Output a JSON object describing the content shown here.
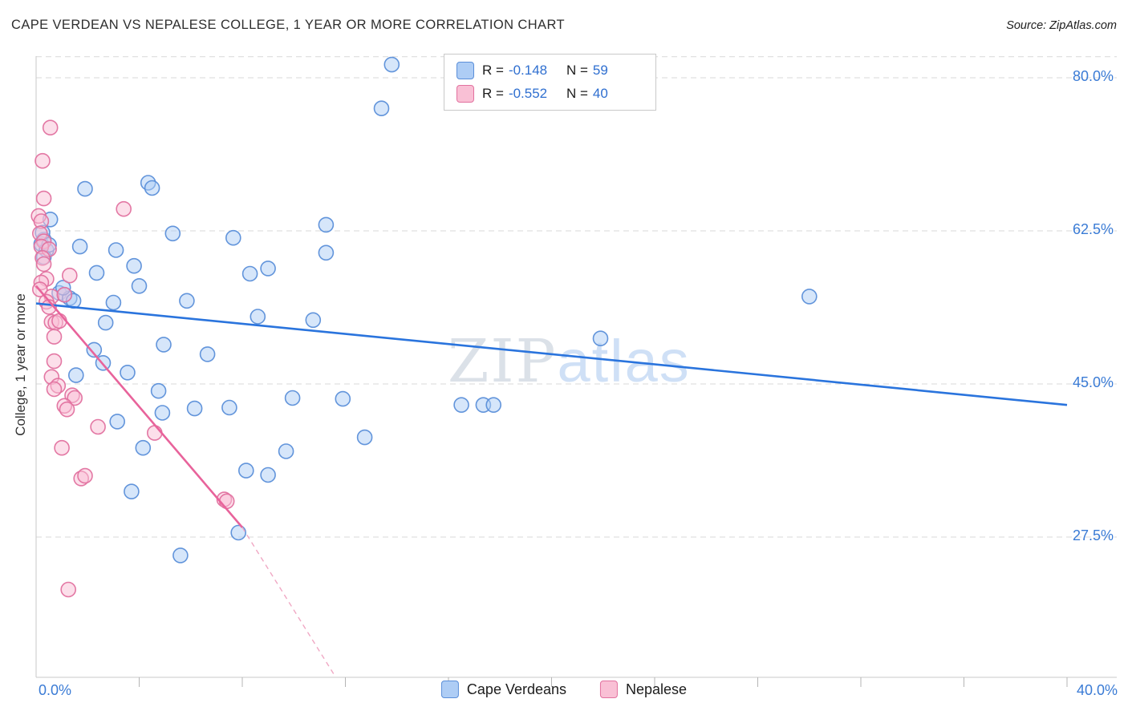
{
  "header": {
    "title": "CAPE VERDEAN VS NEPALESE COLLEGE, 1 YEAR OR MORE CORRELATION CHART",
    "source": "Source: ZipAtlas.com"
  },
  "watermark": {
    "part1": "ZIP",
    "part2": "atlas"
  },
  "correlation_legend": {
    "r_label": "R =",
    "n_label": "N =",
    "entries": [
      {
        "series": "Cape Verdeans",
        "r": "-0.148",
        "n": "59"
      },
      {
        "series": "Nepalese",
        "r": "-0.552",
        "n": "40"
      }
    ]
  },
  "bottom_legend": [
    "Cape Verdeans",
    "Nepalese"
  ],
  "chart_data": {
    "type": "scatter",
    "title": "CAPE VERDEAN VS NEPALESE COLLEGE, 1 YEAR OR MORE CORRELATION CHART",
    "xlabel": "",
    "ylabel": "College, 1 year or more",
    "xlim": [
      0,
      40
    ],
    "ylim": [
      11.5,
      82.5
    ],
    "grid": true,
    "legend_position": "bottom",
    "x_axis_labels": [
      "0.0%",
      "40.0%"
    ],
    "x_ticks": [
      4,
      8,
      12,
      16,
      20,
      24,
      28,
      32,
      36,
      40
    ],
    "y_gridlines": [
      {
        "value": 82.4,
        "label": ""
      },
      {
        "value": 80.0,
        "label": "80.0%"
      },
      {
        "value": 62.5,
        "label": "62.5%"
      },
      {
        "value": 45.0,
        "label": "45.0%"
      },
      {
        "value": 27.5,
        "label": "27.5%"
      }
    ],
    "series": [
      {
        "name": "Cape Verdeans",
        "R": -0.148,
        "N": 59,
        "fill": "#aecdf5",
        "stroke": "#5b8fd9",
        "points": [
          [
            13.8,
            81.5
          ],
          [
            13.4,
            76.5
          ],
          [
            1.9,
            67.3
          ],
          [
            4.35,
            68.0
          ],
          [
            4.5,
            67.4
          ],
          [
            0.55,
            63.8
          ],
          [
            0.3,
            61.5
          ],
          [
            0.2,
            61.0
          ],
          [
            0.4,
            60.3
          ],
          [
            0.3,
            59.5
          ],
          [
            1.7,
            60.7
          ],
          [
            3.1,
            60.3
          ],
          [
            5.3,
            62.2
          ],
          [
            7.65,
            61.7
          ],
          [
            11.25,
            63.2
          ],
          [
            11.25,
            60.0
          ],
          [
            3.8,
            58.5
          ],
          [
            2.35,
            57.7
          ],
          [
            8.3,
            57.6
          ],
          [
            9.0,
            58.2
          ],
          [
            4.0,
            56.2
          ],
          [
            0.9,
            55.4
          ],
          [
            1.1,
            55.2
          ],
          [
            1.3,
            54.8
          ],
          [
            1.45,
            54.5
          ],
          [
            3.0,
            54.3
          ],
          [
            5.85,
            54.5
          ],
          [
            8.6,
            52.7
          ],
          [
            10.75,
            52.3
          ],
          [
            2.7,
            52.0
          ],
          [
            30.0,
            55.0
          ],
          [
            21.9,
            50.2
          ],
          [
            4.95,
            49.5
          ],
          [
            2.25,
            48.9
          ],
          [
            6.65,
            48.4
          ],
          [
            2.6,
            47.4
          ],
          [
            1.55,
            46.0
          ],
          [
            3.55,
            46.3
          ],
          [
            4.75,
            44.2
          ],
          [
            9.95,
            43.4
          ],
          [
            11.9,
            43.3
          ],
          [
            16.5,
            42.6
          ],
          [
            17.35,
            42.6
          ],
          [
            17.75,
            42.6
          ],
          [
            6.15,
            42.2
          ],
          [
            7.5,
            42.3
          ],
          [
            4.9,
            41.7
          ],
          [
            3.15,
            40.7
          ],
          [
            12.75,
            38.9
          ],
          [
            4.15,
            37.7
          ],
          [
            9.7,
            37.3
          ],
          [
            8.15,
            35.1
          ],
          [
            9.0,
            34.6
          ],
          [
            3.7,
            32.7
          ],
          [
            7.85,
            28.0
          ],
          [
            5.6,
            25.4
          ],
          [
            0.25,
            62.3
          ],
          [
            0.5,
            60.9
          ],
          [
            1.05,
            56.0
          ]
        ]
      },
      {
        "name": "Nepalese",
        "R": -0.552,
        "N": 40,
        "fill": "#f9c0d5",
        "stroke": "#e2719f",
        "points": [
          [
            0.55,
            74.3
          ],
          [
            0.25,
            70.5
          ],
          [
            0.3,
            66.2
          ],
          [
            3.4,
            65.0
          ],
          [
            0.1,
            64.2
          ],
          [
            0.2,
            63.6
          ],
          [
            0.15,
            62.2
          ],
          [
            0.3,
            61.3
          ],
          [
            0.2,
            60.7
          ],
          [
            0.5,
            60.4
          ],
          [
            0.25,
            59.4
          ],
          [
            0.3,
            58.7
          ],
          [
            0.4,
            57.0
          ],
          [
            1.3,
            57.4
          ],
          [
            0.2,
            56.6
          ],
          [
            0.15,
            55.8
          ],
          [
            0.6,
            55.0
          ],
          [
            1.1,
            55.2
          ],
          [
            0.4,
            54.4
          ],
          [
            0.5,
            53.8
          ],
          [
            0.6,
            52.1
          ],
          [
            0.75,
            52.0
          ],
          [
            0.9,
            52.2
          ],
          [
            0.7,
            50.4
          ],
          [
            0.7,
            47.6
          ],
          [
            0.6,
            45.8
          ],
          [
            0.85,
            44.8
          ],
          [
            0.7,
            44.4
          ],
          [
            1.4,
            43.7
          ],
          [
            1.5,
            43.4
          ],
          [
            1.1,
            42.5
          ],
          [
            1.2,
            42.1
          ],
          [
            2.4,
            40.1
          ],
          [
            4.6,
            39.4
          ],
          [
            1.0,
            37.7
          ],
          [
            1.75,
            34.2
          ],
          [
            1.9,
            34.5
          ],
          [
            7.3,
            31.8
          ],
          [
            7.4,
            31.6
          ],
          [
            1.25,
            21.5
          ]
        ]
      }
    ],
    "trend_lines": [
      {
        "series": "Cape Verdeans",
        "color": "#2a74dd",
        "style": "solid",
        "x1": 0,
        "y1": 54.2,
        "x2": 40,
        "y2": 42.6
      },
      {
        "series": "Nepalese",
        "color": "#e8639b",
        "style": "solid",
        "x1": 0,
        "y1": 56.2,
        "x2": 8.0,
        "y2": 28.6
      },
      {
        "series": "Nepalese",
        "color": "#f0a8c4",
        "style": "dashed",
        "x1": 8.0,
        "y1": 28.6,
        "x2": 11.6,
        "y2": 11.6
      }
    ]
  }
}
